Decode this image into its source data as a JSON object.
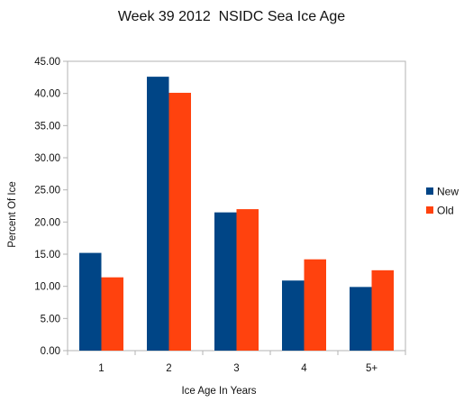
{
  "chart_data": {
    "type": "bar",
    "title": "Week 39 2012  NSIDC Sea Ice Age",
    "xlabel": "Ice Age In Years",
    "ylabel": "Percent Of Ice",
    "categories": [
      "1",
      "2",
      "3",
      "4",
      "5+"
    ],
    "series": [
      {
        "name": "New",
        "color": "#004586",
        "values": [
          15.2,
          42.6,
          21.5,
          10.9,
          9.9
        ]
      },
      {
        "name": "Old",
        "color": "#ff420e",
        "values": [
          11.4,
          40.1,
          22.0,
          14.2,
          12.5
        ]
      }
    ],
    "ylim": [
      0,
      45
    ],
    "ytick_step": 5,
    "ytick_labels": [
      "0.00",
      "5.00",
      "10.00",
      "15.00",
      "20.00",
      "25.00",
      "30.00",
      "35.00",
      "40.00",
      "45.00"
    ],
    "grid": false,
    "legend": "right"
  }
}
